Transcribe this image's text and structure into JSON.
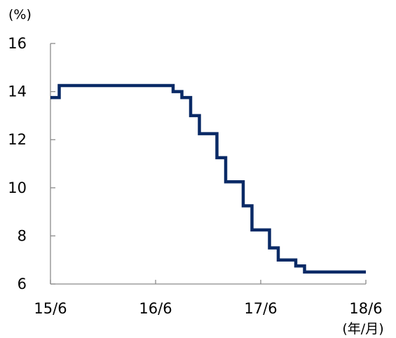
{
  "chart_data": {
    "type": "line",
    "step": "post",
    "title": "",
    "xlabel": "",
    "ylabel": "",
    "y_unit_label": "(%)",
    "x_unit_label": "(年/月)",
    "ylim": [
      6,
      16
    ],
    "y_ticks": [
      "6",
      "8",
      "10",
      "12",
      "14",
      "16"
    ],
    "x_ticks": [
      "15/6",
      "16/6",
      "17/6",
      "18/6"
    ],
    "grid": false,
    "legend": "none",
    "line_color": "#0a2a66",
    "series": [
      {
        "points": [
          [
            "2015-06",
            13.75
          ],
          [
            "2015-07",
            14.25
          ],
          [
            "2016-07",
            14.25
          ],
          [
            "2016-08",
            14.0
          ],
          [
            "2016-09",
            13.75
          ],
          [
            "2016-10",
            13.0
          ],
          [
            "2016-11",
            12.25
          ],
          [
            "2017-01",
            11.25
          ],
          [
            "2017-02",
            10.25
          ],
          [
            "2017-04",
            9.25
          ],
          [
            "2017-05",
            8.25
          ],
          [
            "2017-07",
            7.5
          ],
          [
            "2017-08",
            7.0
          ],
          [
            "2017-10",
            6.75
          ],
          [
            "2017-11",
            6.5
          ],
          [
            "2018-06",
            6.5
          ]
        ]
      }
    ]
  }
}
